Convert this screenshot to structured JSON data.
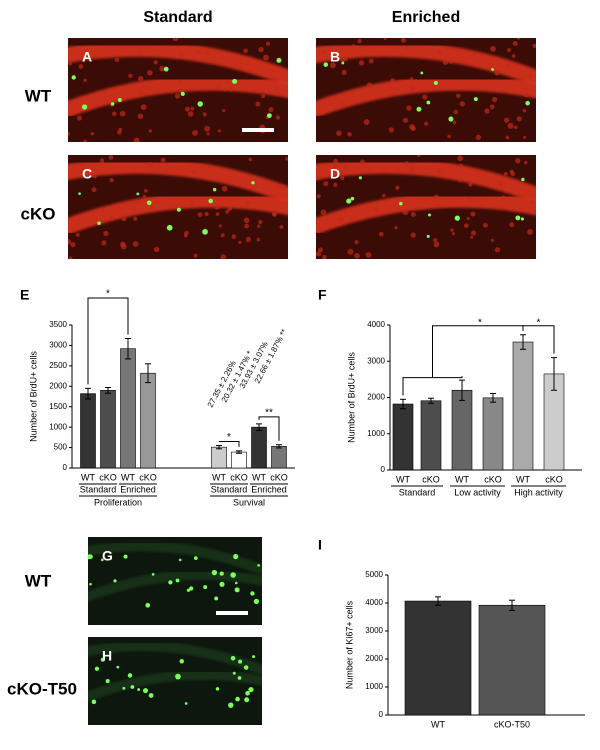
{
  "column_headers": [
    "Standard",
    "Enriched"
  ],
  "row_labels": [
    "WT",
    "cKO"
  ],
  "image_panels": [
    "A",
    "B",
    "C",
    "D"
  ],
  "lower_image_panels": [
    "G",
    "H"
  ],
  "lower_row_labels": [
    "WT",
    "cKO-T50"
  ],
  "chart_data": [
    {
      "panel": "E",
      "type": "bar",
      "ylabel": "Number of BrdU+ cells",
      "categories": [
        "WT",
        "cKO",
        "WT",
        "cKO",
        "WT",
        "cKO",
        "WT",
        "cKO"
      ],
      "groups": [
        "Standard",
        "Enriched",
        "Standard",
        "Enriched"
      ],
      "sections": [
        "Proliferation",
        "Survival"
      ],
      "values": [
        1820,
        1900,
        2920,
        2320,
        510,
        390,
        1000,
        530
      ],
      "errors": [
        130,
        70,
        250,
        230,
        40,
        30,
        80,
        40
      ],
      "colors": [
        "#333333",
        "#4d4d4d",
        "#777777",
        "#999999",
        "#cccccc",
        "#ffffff",
        "#333333",
        "#777777"
      ],
      "ylim": [
        0,
        3500
      ],
      "yticks": [
        0,
        500,
        1000,
        1500,
        2000,
        2500,
        3000,
        3500
      ],
      "annotations": [
        "27.35 ± 2.26%",
        "20.32 ± 1.47% *",
        "33.93 ± 3.07%",
        "22.66 ± 1.87% **"
      ],
      "significance": [
        "*",
        "*",
        "**"
      ]
    },
    {
      "panel": "F",
      "type": "bar",
      "ylabel": "Number of BrdU+ cells",
      "categories": [
        "WT",
        "cKO",
        "WT",
        "cKO",
        "WT",
        "cKO"
      ],
      "groups": [
        "Standard",
        "Low activity",
        "High activity"
      ],
      "values": [
        1820,
        1910,
        2200,
        1990,
        3530,
        2650
      ],
      "errors": [
        130,
        70,
        280,
        120,
        200,
        450
      ],
      "colors": [
        "#333333",
        "#4d4d4d",
        "#666666",
        "#888888",
        "#aaaaaa",
        "#cccccc"
      ],
      "ylim": [
        0,
        4000
      ],
      "yticks": [
        0,
        1000,
        2000,
        3000,
        4000
      ],
      "significance": [
        "*",
        "*"
      ]
    },
    {
      "panel": "I",
      "type": "bar",
      "ylabel": "Number of Ki67+ cells",
      "categories": [
        "WT",
        "cKO-T50"
      ],
      "values": [
        4070,
        3920
      ],
      "errors": [
        150,
        180
      ],
      "colors": [
        "#333333",
        "#555555"
      ],
      "ylim": [
        0,
        5000
      ],
      "yticks": [
        0,
        1000,
        2000,
        3000,
        4000,
        5000
      ]
    }
  ]
}
